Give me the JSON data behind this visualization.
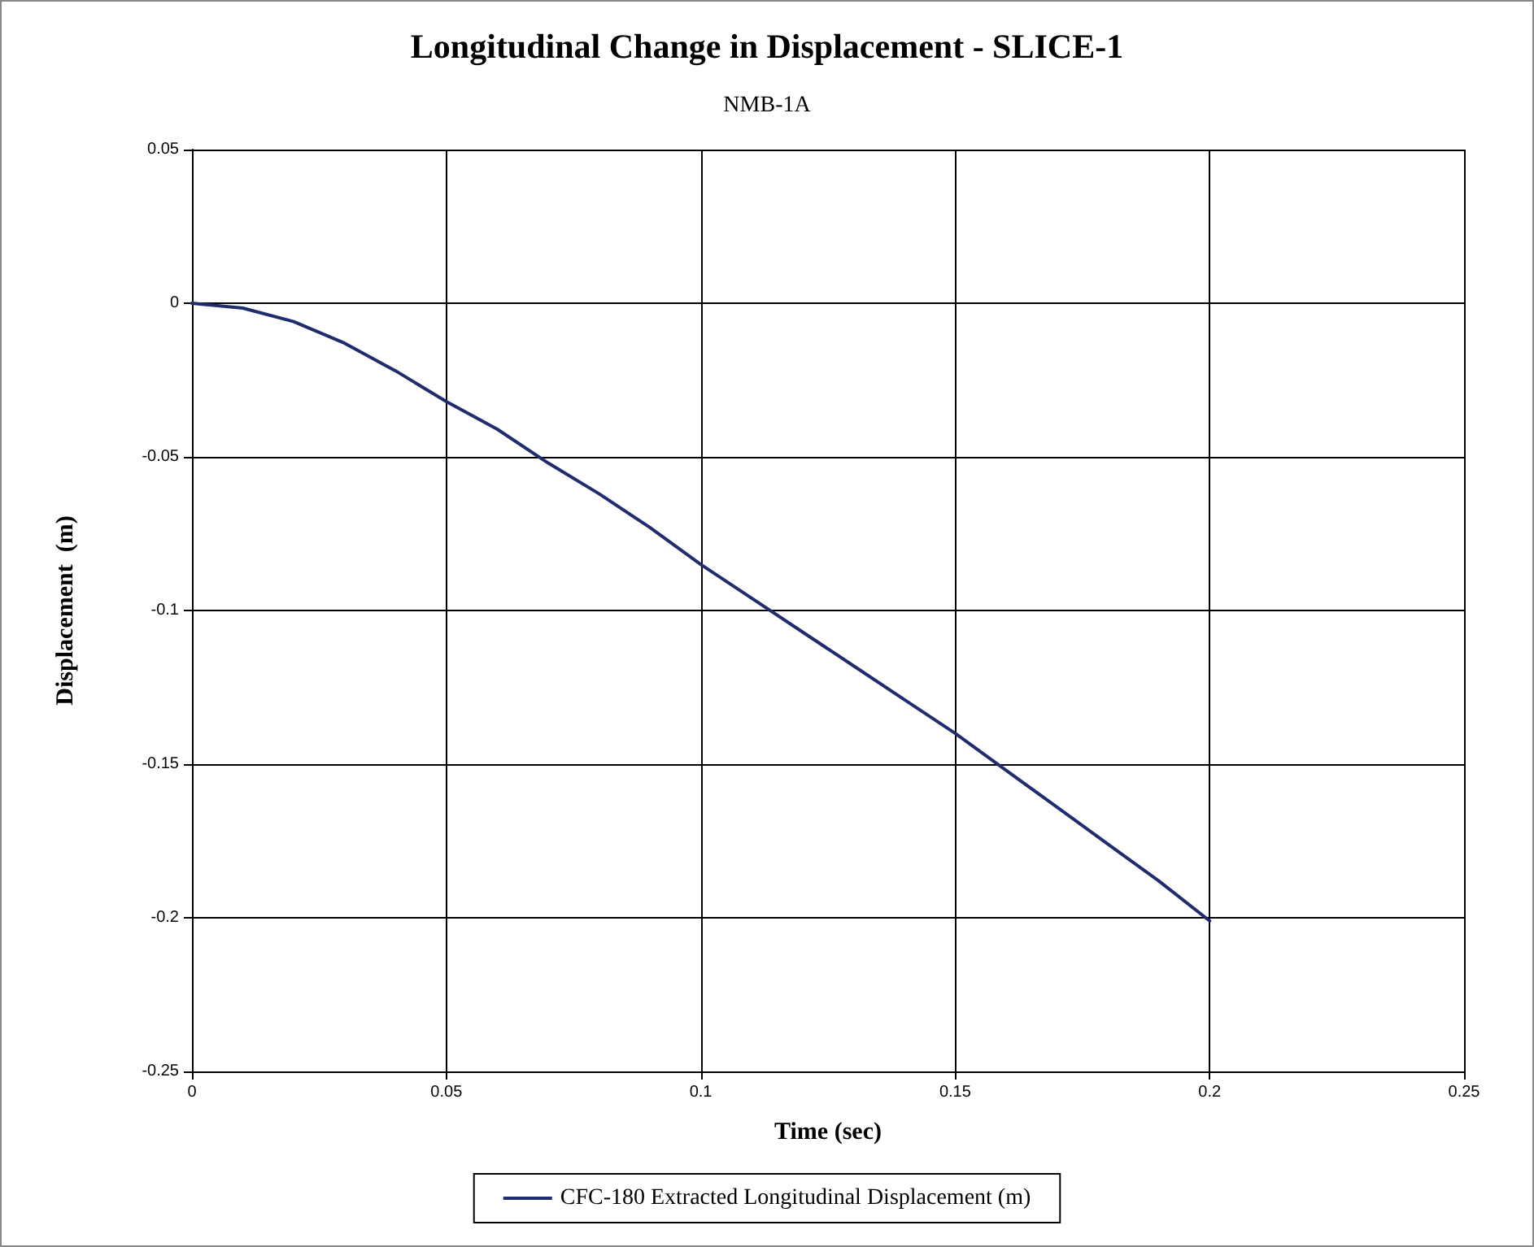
{
  "chart_data": {
    "type": "line",
    "title": "Longitudinal Change in Displacement - SLICE-1",
    "subtitle": "NMB-1A",
    "xlabel": "Time (sec)",
    "ylabel": "Displacement  (m)",
    "x": [
      0,
      0.01,
      0.02,
      0.03,
      0.04,
      0.05,
      0.06,
      0.07,
      0.08,
      0.09,
      0.1,
      0.11,
      0.12,
      0.13,
      0.14,
      0.15,
      0.16,
      0.17,
      0.18,
      0.19,
      0.2
    ],
    "series": [
      {
        "name": "CFC-180 Extracted Longitudinal Displacement (m)",
        "color": "#1f2d6e",
        "values": [
          0,
          -0.0016,
          -0.006,
          -0.013,
          -0.022,
          -0.032,
          -0.041,
          -0.052,
          -0.062,
          -0.073,
          -0.085,
          -0.096,
          -0.107,
          -0.118,
          -0.129,
          -0.14,
          -0.152,
          -0.164,
          -0.176,
          -0.188,
          -0.201
        ]
      }
    ],
    "xlim": [
      0,
      0.25
    ],
    "xticks": [
      0,
      0.05,
      0.1,
      0.15,
      0.2,
      0.25
    ],
    "ylim": [
      -0.25,
      0.05
    ],
    "yticks": [
      -0.25,
      -0.2,
      -0.15,
      -0.1,
      -0.05,
      0,
      0.05
    ],
    "grid": true,
    "legend": "bottom",
    "marker": "none",
    "line_style": "solid"
  }
}
